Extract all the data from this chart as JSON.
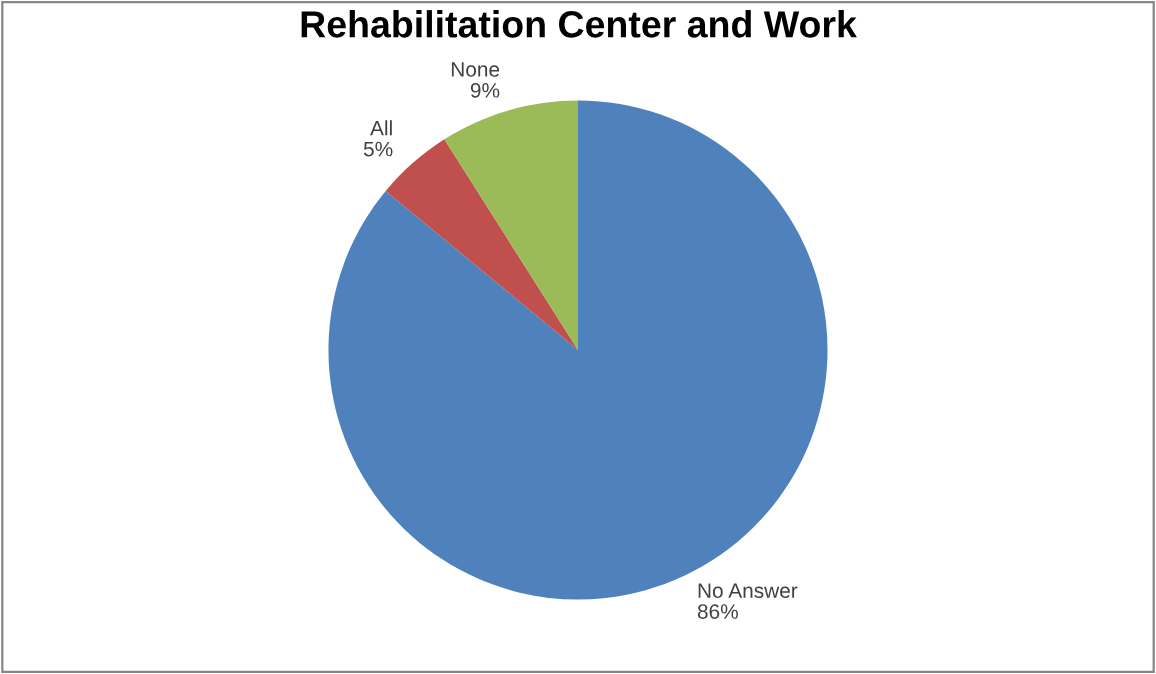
{
  "chart_data": {
    "type": "pie",
    "title": "Rehabilitation Center and Work",
    "categories": [
      "No Answer",
      "All",
      "None"
    ],
    "values": [
      86,
      5,
      9
    ],
    "value_labels": [
      "86%",
      "5%",
      "9%"
    ],
    "colors": [
      "#4f81bd",
      "#c0504d",
      "#9bbb59"
    ],
    "legend": false
  }
}
